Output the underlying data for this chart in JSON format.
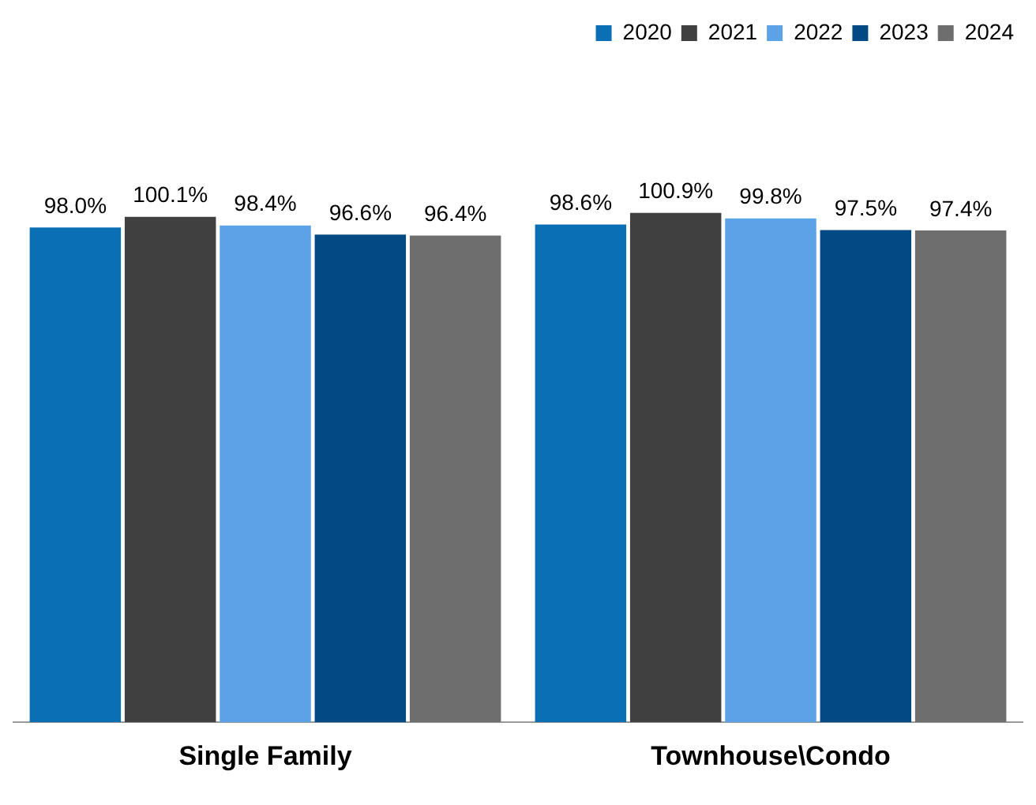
{
  "chart_data": {
    "type": "bar",
    "categories": [
      "Single Family",
      "Townhouse\\Condo"
    ],
    "series": [
      {
        "name": "2020",
        "color": "#0a6fb4",
        "values": [
          98.0,
          98.6
        ],
        "value_labels": [
          "98.0%",
          "98.6%"
        ]
      },
      {
        "name": "2021",
        "color": "#404040",
        "values": [
          100.1,
          100.9
        ],
        "value_labels": [
          "100.1%",
          "100.9%"
        ]
      },
      {
        "name": "2022",
        "color": "#5ba3e6",
        "values": [
          98.4,
          99.8
        ],
        "value_labels": [
          "98.4%",
          "99.8%"
        ]
      },
      {
        "name": "2023",
        "color": "#034a84",
        "values": [
          96.6,
          97.5
        ],
        "value_labels": [
          "96.6%",
          "97.5%"
        ]
      },
      {
        "name": "2024",
        "color": "#6e6e6e",
        "values": [
          96.4,
          97.4
        ],
        "value_labels": [
          "96.4%",
          "97.4%"
        ]
      }
    ],
    "legend": "top right",
    "grid": false,
    "tick_labels": "x"
  }
}
